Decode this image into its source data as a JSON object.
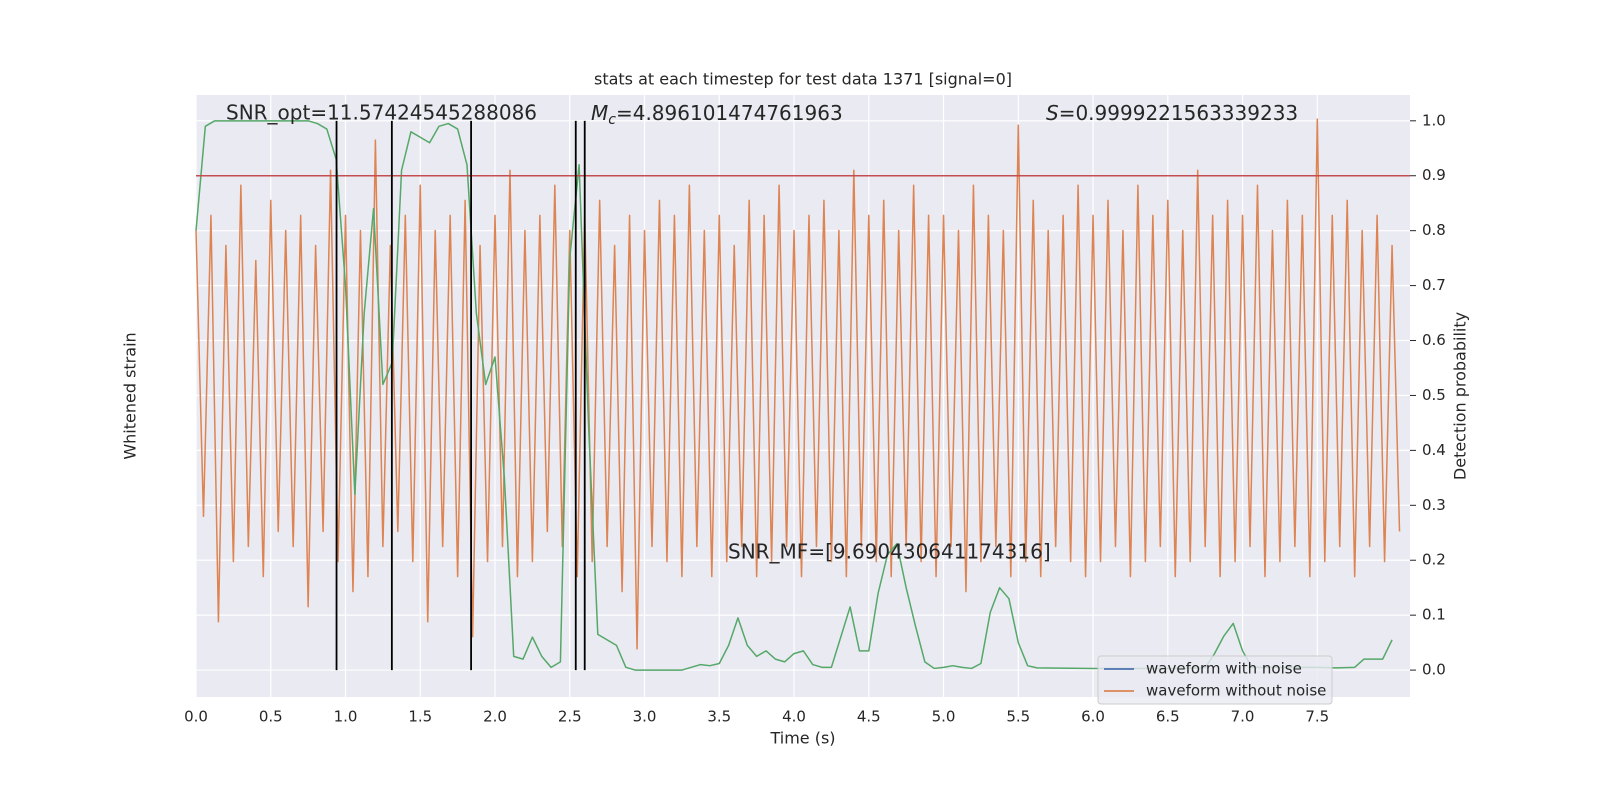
{
  "chart_data": {
    "type": "line",
    "title": "stats at each timestep for test data 1371 [signal=0]",
    "xlabel": "Time (s)",
    "ylabel": "Whitened strain",
    "y2label": "Detection probability",
    "annotations": [
      {
        "text": "SNR_opt=11.57424545288086"
      },
      {
        "symbol": "M",
        "subscript": "c",
        "text": "=4.896101474761963"
      },
      {
        "symbol": "S",
        "text": "=0.9999221563339233"
      },
      {
        "text": "SNR_MF=[9.690430641174316]"
      }
    ],
    "xlim": [
      0,
      8.12
    ],
    "ylim": [
      -1,
      1
    ],
    "y2lim": [
      -0.049,
      1.047
    ],
    "xticks": [
      {
        "value": 0,
        "label": "0.0"
      },
      {
        "value": 0.5,
        "label": "0.5"
      },
      {
        "value": 1,
        "label": "1.0"
      },
      {
        "value": 1.5,
        "label": "1.5"
      },
      {
        "value": 2,
        "label": "2.0"
      },
      {
        "value": 2.5,
        "label": "2.5"
      },
      {
        "value": 3,
        "label": "3.0"
      },
      {
        "value": 3.5,
        "label": "3.5"
      },
      {
        "value": 4,
        "label": "4.0"
      },
      {
        "value": 4.5,
        "label": "4.5"
      },
      {
        "value": 5,
        "label": "5.0"
      },
      {
        "value": 5.5,
        "label": "5.5"
      },
      {
        "value": 6,
        "label": "6.0"
      },
      {
        "value": 6.5,
        "label": "6.5"
      },
      {
        "value": 7,
        "label": "7.0"
      },
      {
        "value": 7.5,
        "label": "7.5"
      }
    ],
    "y2ticks": [
      {
        "value": 0,
        "label": "0.0"
      },
      {
        "value": 0.1,
        "label": "0.1"
      },
      {
        "value": 0.2,
        "label": "0.2"
      },
      {
        "value": 0.3,
        "label": "0.3"
      },
      {
        "value": 0.4,
        "label": "0.4"
      },
      {
        "value": 0.5,
        "label": "0.5"
      },
      {
        "value": 0.6,
        "label": "0.6"
      },
      {
        "value": 0.7,
        "label": "0.7"
      },
      {
        "value": 0.8,
        "label": "0.8"
      },
      {
        "value": 0.9,
        "label": "0.9"
      },
      {
        "value": 1,
        "label": "1.0"
      }
    ],
    "grid": true,
    "legend": [
      {
        "name": "waveform with noise",
        "color": "#4c72b0"
      },
      {
        "name": "waveform without noise",
        "color": "#dd8452"
      }
    ],
    "legend_position": "lower right",
    "threshold": {
      "value": 0.9,
      "color": "#c44e52",
      "axis": "y2"
    },
    "vlines": {
      "x": [
        0.94,
        1.31,
        1.84,
        2.54,
        2.6
      ],
      "from": 0,
      "to": 1,
      "color": "#000000",
      "axis": "y2"
    },
    "series": [
      {
        "name": "waveform without noise",
        "color": "#dd8452",
        "x": [
          0,
          0.05,
          0.1,
          0.15,
          0.2,
          0.25,
          0.3,
          0.35,
          0.4,
          0.45,
          0.5,
          0.55,
          0.6,
          0.65,
          0.7,
          0.75,
          0.8,
          0.85,
          0.9,
          0.95,
          1,
          1.05,
          1.1,
          1.15,
          1.2,
          1.25,
          1.3,
          1.35,
          1.4,
          1.45,
          1.5,
          1.55,
          1.6,
          1.65,
          1.7,
          1.75,
          1.8,
          1.85,
          1.9,
          1.95,
          2,
          2.05,
          2.1,
          2.15,
          2.2,
          2.25,
          2.3,
          2.35,
          2.4,
          2.45,
          2.5,
          2.55,
          2.6,
          2.65,
          2.7,
          2.75,
          2.8,
          2.85,
          2.9,
          2.95,
          3,
          3.05,
          3.1,
          3.15,
          3.2,
          3.25,
          3.3,
          3.35,
          3.4,
          3.45,
          3.5,
          3.55,
          3.6,
          3.65,
          3.7,
          3.75,
          3.8,
          3.85,
          3.9,
          3.95,
          4,
          4.05,
          4.1,
          4.15,
          4.2,
          4.25,
          4.3,
          4.35,
          4.4,
          4.45,
          4.5,
          4.55,
          4.6,
          4.65,
          4.7,
          4.75,
          4.8,
          4.85,
          4.9,
          4.95,
          5,
          5.05,
          5.1,
          5.15,
          5.2,
          5.25,
          5.3,
          5.35,
          5.4,
          5.45,
          5.5,
          5.55,
          5.6,
          5.65,
          5.7,
          5.75,
          5.8,
          5.85,
          5.9,
          5.95,
          6,
          6.05,
          6.1,
          6.15,
          6.2,
          6.25,
          6.3,
          6.35,
          6.4,
          6.45,
          6.5,
          6.55,
          6.6,
          6.65,
          6.7,
          6.75,
          6.8,
          6.85,
          6.9,
          6.95,
          7,
          7.05,
          7.1,
          7.15,
          7.2,
          7.25,
          7.3,
          7.35,
          7.4,
          7.45,
          7.5,
          7.55,
          7.6,
          7.65,
          7.7,
          7.75,
          7.8,
          7.85,
          7.9,
          7.95,
          8,
          8.05
        ],
        "values": [
          0.55,
          -0.4,
          0.6,
          -0.75,
          0.5,
          -0.55,
          0.7,
          -0.5,
          0.45,
          -0.6,
          0.65,
          -0.45,
          0.55,
          -0.5,
          0.6,
          -0.7,
          0.5,
          -0.45,
          0.75,
          -0.55,
          0.6,
          -0.65,
          0.55,
          -0.6,
          0.85,
          -0.5,
          0.5,
          -0.45,
          0.6,
          -0.55,
          0.7,
          -0.75,
          0.55,
          -0.5,
          0.6,
          -0.6,
          0.65,
          -0.8,
          0.5,
          -0.55,
          0.6,
          -0.5,
          0.75,
          -0.6,
          0.55,
          -0.55,
          0.6,
          -0.45,
          0.7,
          -0.5,
          0.55,
          -0.6,
          0.6,
          -0.55,
          0.65,
          -0.5,
          0.5,
          -0.65,
          0.6,
          -0.84,
          0.55,
          -0.5,
          0.65,
          -0.55,
          0.6,
          -0.6,
          0.7,
          -0.5,
          0.55,
          -0.6,
          0.6,
          -0.55,
          0.5,
          -0.5,
          0.65,
          -0.6,
          0.6,
          -0.55,
          0.7,
          -0.5,
          0.55,
          -0.6,
          0.6,
          -0.5,
          0.65,
          -0.55,
          0.55,
          -0.6,
          0.75,
          -0.5,
          0.6,
          -0.55,
          0.65,
          -0.6,
          0.55,
          -0.5,
          0.7,
          -0.55,
          0.6,
          -0.6,
          0.6,
          -0.5,
          0.55,
          -0.65,
          0.7,
          -0.55,
          0.6,
          -0.5,
          0.55,
          -0.6,
          0.9,
          -0.55,
          0.65,
          -0.6,
          0.55,
          -0.5,
          0.6,
          -0.55,
          0.7,
          -0.6,
          0.6,
          -0.55,
          0.65,
          -0.5,
          0.55,
          -0.6,
          0.7,
          -0.55,
          0.6,
          -0.5,
          0.65,
          -0.6,
          0.55,
          -0.55,
          0.75,
          -0.5,
          0.6,
          -0.6,
          0.65,
          -0.55,
          0.6,
          -0.5,
          0.7,
          -0.6,
          0.55,
          -0.55,
          0.65,
          -0.5,
          0.6,
          -0.6,
          0.92,
          -0.55,
          0.6,
          -0.5,
          0.65,
          -0.6,
          0.55,
          -0.5,
          0.6,
          -0.55,
          0.5,
          -0.45
        ]
      },
      {
        "color": "#55a868",
        "axis": "y2",
        "x": [
          0,
          0.0625,
          0.125,
          0.25,
          0.5,
          0.75,
          0.8125,
          0.875,
          0.9375,
          1,
          1.0625,
          1.125,
          1.1875,
          1.25,
          1.3125,
          1.375,
          1.4375,
          1.5,
          1.5625,
          1.625,
          1.6875,
          1.75,
          1.8125,
          1.875,
          1.9375,
          2,
          2.0625,
          2.125,
          2.1875,
          2.25,
          2.3125,
          2.375,
          2.4375,
          2.5,
          2.5625,
          2.625,
          2.6875,
          2.75,
          2.8125,
          2.875,
          2.9375,
          3.25,
          3.3125,
          3.375,
          3.4375,
          3.5,
          3.5625,
          3.625,
          3.6875,
          3.75,
          3.8125,
          3.875,
          3.9375,
          4,
          4.0625,
          4.125,
          4.1875,
          4.25,
          4.3125,
          4.375,
          4.4375,
          4.5,
          4.5625,
          4.625,
          4.6875,
          4.75,
          4.8125,
          4.875,
          4.9375,
          5,
          5.0625,
          5.125,
          5.1875,
          5.25,
          5.3125,
          5.375,
          5.4375,
          5.5,
          5.5625,
          5.625,
          6,
          6.5,
          6.75,
          6.8125,
          6.875,
          6.9375,
          7,
          7.0625,
          7.5,
          7.625,
          7.75,
          7.8125,
          7.875,
          7.9375,
          8
        ],
        "values": [
          0.8,
          0.99,
          1,
          1,
          1,
          1,
          0.995,
          0.985,
          0.93,
          0.7,
          0.32,
          0.65,
          0.84,
          0.52,
          0.56,
          0.91,
          0.98,
          0.97,
          0.96,
          0.99,
          0.995,
          0.985,
          0.92,
          0.65,
          0.52,
          0.57,
          0.35,
          0.025,
          0.02,
          0.06,
          0.025,
          0.005,
          0.015,
          0.75,
          0.92,
          0.45,
          0.065,
          0.055,
          0.045,
          0.005,
          0,
          0,
          0.005,
          0.01,
          0.008,
          0.012,
          0.045,
          0.095,
          0.045,
          0.025,
          0.035,
          0.02,
          0.015,
          0.03,
          0.035,
          0.01,
          0.005,
          0.005,
          0.06,
          0.115,
          0.035,
          0.035,
          0.14,
          0.21,
          0.23,
          0.15,
          0.08,
          0.015,
          0.003,
          0.005,
          0.008,
          0.005,
          0.003,
          0.012,
          0.105,
          0.15,
          0.13,
          0.05,
          0.008,
          0.004,
          0.003,
          0.003,
          0.004,
          0.03,
          0.062,
          0.085,
          0.035,
          0.005,
          0.005,
          0.004,
          0.005,
          0.02,
          0.02,
          0.02,
          0.055
        ]
      }
    ]
  }
}
